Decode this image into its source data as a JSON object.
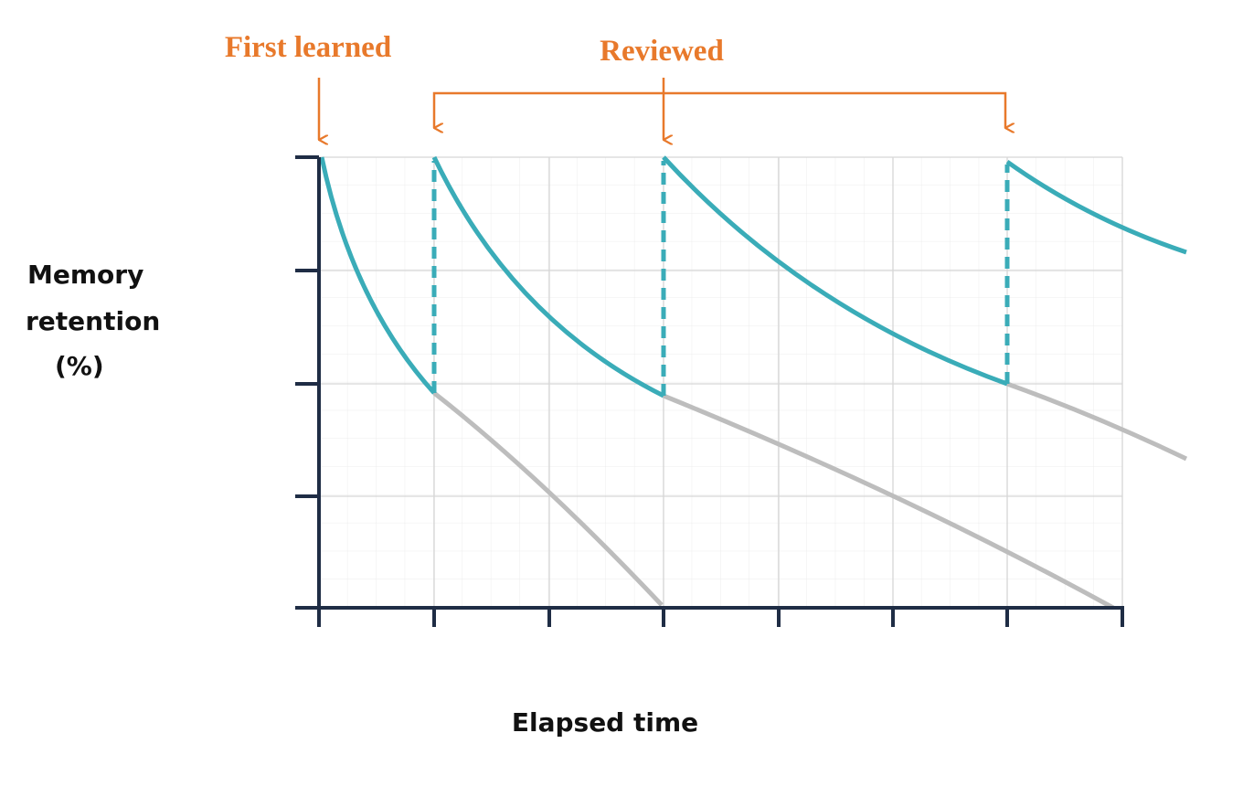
{
  "annotations": {
    "first": "First learned",
    "reviewed": "Reviewed"
  },
  "y_label": [
    "Memory",
    "retention",
    "(%)"
  ],
  "x_label": "Elapsed time"
}
